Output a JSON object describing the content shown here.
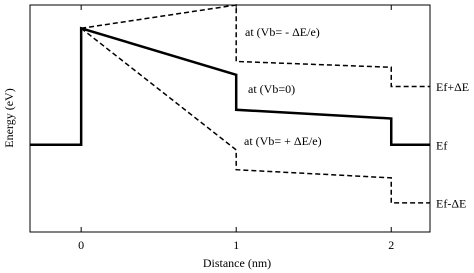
{
  "chart_data": {
    "type": "line",
    "xlabel": "Distance (nm)",
    "ylabel": "Energy (eV)",
    "xlim": [
      -0.33,
      2.25
    ],
    "xticks": [
      0,
      1,
      2
    ],
    "ylim": [
      -1.5,
      2.4
    ],
    "series": [
      {
        "name": "at (Vb= - ΔE/e)",
        "end_label": "Ef+ΔE",
        "color": "#000000",
        "dash": true,
        "x": [
          0,
          1,
          1,
          2,
          2,
          2.25
        ],
        "values": [
          2,
          2.4,
          1.43,
          1.33,
          1,
          1
        ]
      },
      {
        "name": "at (Vb=0)",
        "end_label": "Ef",
        "color": "#000000",
        "dash": false,
        "x": [
          -0.33,
          0,
          0,
          1,
          1,
          2,
          2,
          2.25
        ],
        "values": [
          0,
          0,
          2,
          1.2,
          0.6,
          0.45,
          0,
          0
        ]
      },
      {
        "name": "at (Vb= + ΔE/e)",
        "end_label": "Ef-ΔE",
        "color": "#000000",
        "dash": true,
        "x": [
          0,
          1,
          1,
          2,
          2,
          2.25
        ],
        "values": [
          2,
          -0.09,
          -0.43,
          -0.57,
          -1,
          -1
        ]
      }
    ]
  }
}
